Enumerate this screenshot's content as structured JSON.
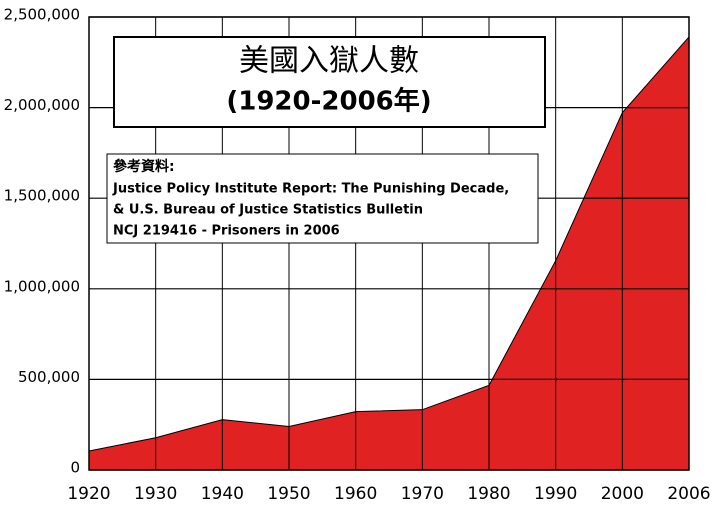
{
  "chart_data": {
    "type": "area",
    "title": "美國入獄人數",
    "subtitle": "(1920-2006年)",
    "source_heading": "參考資料:",
    "source_lines": [
      "Justice Policy Institute Report: The Punishing Decade,",
      "& U.S. Bureau of Justice Statistics Bulletin",
      "NCJ 219416 - Prisoners in 2006"
    ],
    "categories": [
      "1920",
      "1930",
      "1940",
      "1950",
      "1960",
      "1970",
      "1980",
      "1990",
      "2000",
      "2006"
    ],
    "values": [
      105000,
      178000,
      278000,
      240000,
      322000,
      333000,
      467000,
      1155000,
      1972000,
      2390000
    ],
    "color": "#e02222",
    "ylim": [
      0,
      2500000
    ],
    "yticks": [
      0,
      {
        "value": 500000,
        "label": "500,000"
      },
      {
        "value": 1000000,
        "label": "1,000,000"
      },
      {
        "value": 1500000,
        "label": "1,500,000"
      },
      {
        "value": 2000000,
        "label": "2,000,000"
      },
      {
        "value": 2500000,
        "label": "2,500,000"
      }
    ],
    "grid": true
  }
}
